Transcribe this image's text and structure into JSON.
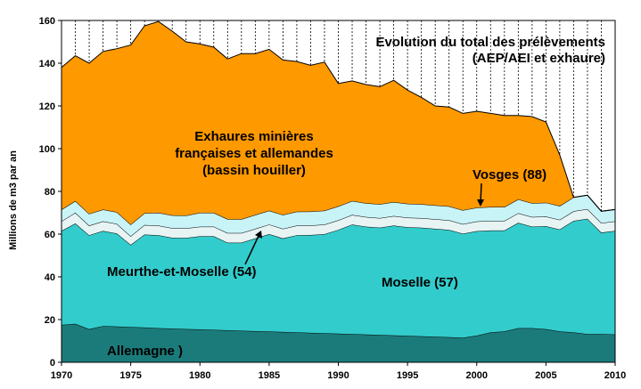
{
  "chart_data": {
    "type": "area",
    "title": "Evolution du total des prélèvements",
    "subtitle": "(AEP/AEI et exhaure)",
    "ylabel": "Millions  de  m3  par  an",
    "xlabel": "",
    "xlim": [
      1970,
      2010
    ],
    "ylim": [
      0,
      160
    ],
    "x_ticks": [
      1970,
      1975,
      1980,
      1985,
      1990,
      1995,
      2000,
      2005,
      2010
    ],
    "y_ticks": [
      0,
      20,
      40,
      60,
      80,
      100,
      120,
      140,
      160
    ],
    "grid": "vertical dashed lines every year",
    "stacking": "stacked",
    "x": [
      1970,
      1971,
      1972,
      1973,
      1974,
      1975,
      1976,
      1977,
      1978,
      1979,
      1980,
      1981,
      1982,
      1983,
      1984,
      1985,
      1986,
      1987,
      1988,
      1989,
      1990,
      1991,
      1992,
      1993,
      1994,
      1995,
      1996,
      1997,
      1998,
      1999,
      2000,
      2001,
      2002,
      2003,
      2004,
      2005,
      2006,
      2007,
      2008,
      2009,
      2010
    ],
    "series": [
      {
        "name": "Allemagne )",
        "color": "#1b7b7a",
        "values": [
          17.5,
          18,
          15.5,
          17,
          16.8,
          16.5,
          16.3,
          16,
          15.8,
          15.6,
          15.4,
          15.2,
          15,
          14.8,
          14.6,
          14.4,
          14.2,
          14,
          13.8,
          13.6,
          13.4,
          13.2,
          13,
          12.8,
          12.6,
          12.4,
          12.2,
          12,
          11.8,
          11.5,
          12.5,
          14,
          14.5,
          16,
          16,
          15.5,
          14.5,
          14,
          13.2,
          13.2,
          13
        ]
      },
      {
        "name": "Moselle (57)",
        "color": "#33cccc",
        "values": [
          44,
          47,
          44,
          44.5,
          43.5,
          38.5,
          43.5,
          43.5,
          42.5,
          42.6,
          43.6,
          43.8,
          41,
          41.2,
          43.4,
          45.6,
          43.8,
          45.5,
          45.8,
          46.4,
          48.6,
          51.3,
          50.5,
          50.2,
          51.4,
          50.8,
          50.8,
          50.5,
          50.2,
          48.7,
          48.9,
          47.7,
          47.2,
          49.3,
          47.5,
          48.2,
          47.7,
          52.2,
          54,
          47.5,
          48.5
        ]
      },
      {
        "name": "Meurthe-et-Moselle (54)",
        "color": "#e8f4f4",
        "values": [
          4.5,
          5,
          4.5,
          4.5,
          4.5,
          4,
          4.5,
          4.5,
          4.5,
          4.5,
          4.5,
          4.5,
          4.5,
          4.5,
          4.5,
          4.5,
          4.5,
          4.5,
          4.5,
          4.5,
          4.5,
          4.5,
          4.5,
          4.5,
          4.5,
          4.5,
          4.5,
          4.5,
          4.5,
          4.5,
          4.5,
          4.5,
          4.5,
          4.5,
          4.5,
          4.5,
          4.5,
          4.5,
          4.5,
          4.5,
          4.5
        ]
      },
      {
        "name": "Vosges (88)",
        "color": "#c8f4f8",
        "values": [
          5.5,
          5.5,
          5.5,
          5.5,
          5.5,
          5.5,
          5.5,
          6,
          6,
          6,
          6.5,
          6.5,
          6.5,
          6.5,
          6.5,
          6.5,
          6.5,
          6.5,
          6.5,
          6.5,
          6.5,
          6.5,
          6.5,
          6.5,
          6.5,
          6.5,
          6.5,
          6.5,
          6.5,
          6.5,
          6.5,
          6.5,
          6.5,
          6.5,
          6.5,
          6.5,
          6.5,
          6.5,
          6.5,
          5.5,
          5.5
        ]
      },
      {
        "name": "Exhaures minières françaises et allemandes (bassin houiller)",
        "color": "#ff9900",
        "values": [
          66.5,
          68,
          70.5,
          74,
          76.5,
          84,
          87.7,
          89.5,
          86.2,
          81.3,
          79,
          77.5,
          75,
          77.5,
          75.5,
          75.5,
          72.5,
          70.3,
          68.4,
          69.5,
          57.5,
          56.2,
          55.5,
          55,
          57,
          53.2,
          50,
          46.5,
          46.5,
          45.3,
          45.1,
          43.8,
          42.8,
          39.2,
          40.5,
          37.8,
          23.8,
          0,
          0,
          0,
          0
        ]
      }
    ],
    "annotations": [
      {
        "text": "Exhaures minières"
      },
      {
        "text": "françaises et allemandes"
      },
      {
        "text": "(bassin houiller)"
      },
      {
        "text": "Vosges (88)"
      },
      {
        "text": "Meurthe-et-Moselle (54)"
      },
      {
        "text": "Moselle (57)"
      },
      {
        "text": "Allemagne )"
      }
    ]
  }
}
